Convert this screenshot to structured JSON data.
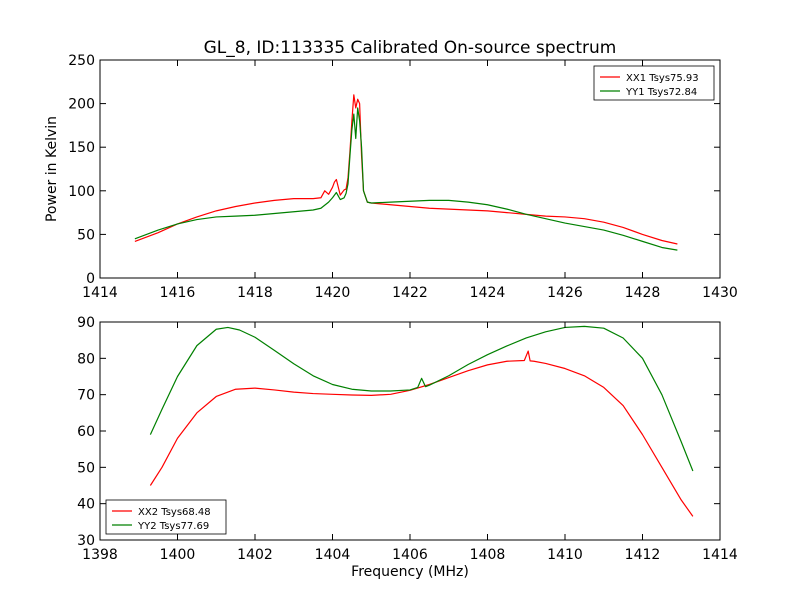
{
  "chart_data": [
    {
      "type": "line",
      "title": "GL_8, ID:113335 Calibrated On-source spectrum",
      "xlabel": "",
      "ylabel": "Power in Kelvin",
      "xlim": [
        1414,
        1430
      ],
      "ylim": [
        0,
        250
      ],
      "xticks": [
        1414,
        1416,
        1418,
        1420,
        1422,
        1424,
        1426,
        1428,
        1430
      ],
      "yticks": [
        0,
        50,
        100,
        150,
        200,
        250
      ],
      "legend_position": "upper-right",
      "series": [
        {
          "name": "XX1 Tsys75.93",
          "color": "#ff0000",
          "x": [
            1414.9,
            1415.5,
            1416.0,
            1416.5,
            1417.0,
            1417.5,
            1418.0,
            1418.5,
            1419.0,
            1419.5,
            1419.7,
            1419.8,
            1419.9,
            1420.0,
            1420.05,
            1420.1,
            1420.2,
            1420.3,
            1420.35,
            1420.4,
            1420.45,
            1420.5,
            1420.55,
            1420.6,
            1420.65,
            1420.7,
            1420.75,
            1420.8,
            1420.9,
            1421.0,
            1421.5,
            1422.0,
            1422.5,
            1423.0,
            1423.5,
            1424.0,
            1424.5,
            1425.0,
            1425.5,
            1426.0,
            1426.5,
            1427.0,
            1427.5,
            1428.0,
            1428.5,
            1428.9
          ],
          "y": [
            42,
            52,
            62,
            70,
            77,
            82,
            86,
            89,
            91,
            91,
            92,
            100,
            96,
            104,
            110,
            113,
            95,
            101,
            102,
            115,
            145,
            180,
            210,
            195,
            205,
            200,
            140,
            100,
            87,
            86,
            84,
            82,
            80,
            79,
            78,
            77,
            75,
            73,
            71,
            70,
            68,
            64,
            58,
            50,
            43,
            39
          ]
        },
        {
          "name": "YY1 Tsys72.84",
          "color": "#008000",
          "x": [
            1414.9,
            1415.5,
            1416.0,
            1416.5,
            1417.0,
            1417.5,
            1418.0,
            1418.5,
            1419.0,
            1419.5,
            1419.7,
            1419.9,
            1420.0,
            1420.1,
            1420.2,
            1420.3,
            1420.35,
            1420.4,
            1420.45,
            1420.5,
            1420.55,
            1420.6,
            1420.65,
            1420.7,
            1420.75,
            1420.8,
            1420.9,
            1421.0,
            1421.5,
            1422.0,
            1422.5,
            1423.0,
            1423.5,
            1424.0,
            1424.5,
            1425.0,
            1425.5,
            1426.0,
            1426.5,
            1427.0,
            1427.5,
            1428.0,
            1428.5,
            1428.9
          ],
          "y": [
            45,
            55,
            62,
            67,
            70,
            71,
            72,
            74,
            76,
            78,
            80,
            87,
            92,
            98,
            90,
            92,
            97,
            108,
            140,
            170,
            188,
            160,
            195,
            180,
            150,
            100,
            87,
            86,
            87,
            88,
            89,
            89,
            87,
            84,
            79,
            73,
            68,
            63,
            59,
            55,
            49,
            42,
            35,
            32
          ]
        }
      ]
    },
    {
      "type": "line",
      "title": "",
      "xlabel": "Frequency (MHz)",
      "ylabel": "",
      "xlim": [
        1398,
        1414
      ],
      "ylim": [
        30,
        90
      ],
      "xticks": [
        1398,
        1400,
        1402,
        1404,
        1406,
        1408,
        1410,
        1412,
        1414
      ],
      "yticks": [
        30,
        40,
        50,
        60,
        70,
        80,
        90
      ],
      "legend_position": "lower-left",
      "series": [
        {
          "name": "XX2 Tsys68.48",
          "color": "#ff0000",
          "x": [
            1399.3,
            1399.6,
            1400.0,
            1400.5,
            1401.0,
            1401.5,
            1402.0,
            1402.5,
            1403.0,
            1403.5,
            1404.0,
            1404.5,
            1405.0,
            1405.5,
            1406.0,
            1406.5,
            1407.0,
            1407.5,
            1408.0,
            1408.5,
            1408.95,
            1409.05,
            1409.1,
            1409.2,
            1409.5,
            1410.0,
            1410.5,
            1411.0,
            1411.5,
            1412.0,
            1412.5,
            1413.0,
            1413.3
          ],
          "y": [
            45,
            50,
            58,
            65,
            69.5,
            71.5,
            71.8,
            71.3,
            70.7,
            70.3,
            70.1,
            69.9,
            69.8,
            70.1,
            71.2,
            72.8,
            74.7,
            76.6,
            78.2,
            79.2,
            79.4,
            82,
            79.3,
            79.2,
            78.6,
            77.2,
            75.2,
            72,
            67,
            59,
            50,
            41,
            36.5
          ]
        },
        {
          "name": "YY2 Tsys77.69",
          "color": "#008000",
          "x": [
            1399.3,
            1399.6,
            1400.0,
            1400.5,
            1401.0,
            1401.3,
            1401.6,
            1402.0,
            1402.5,
            1403.0,
            1403.5,
            1404.0,
            1404.5,
            1405.0,
            1405.5,
            1406.0,
            1406.2,
            1406.3,
            1406.4,
            1406.5,
            1407.0,
            1407.5,
            1408.0,
            1408.5,
            1409.0,
            1409.5,
            1410.0,
            1410.5,
            1411.0,
            1411.5,
            1412.0,
            1412.5,
            1413.0,
            1413.3
          ],
          "y": [
            59,
            66,
            75,
            83.5,
            88,
            88.5,
            87.8,
            85.8,
            82.2,
            78.5,
            75.2,
            72.8,
            71.5,
            71,
            71,
            71.3,
            72,
            74.5,
            72.2,
            72.6,
            75.2,
            78.3,
            81,
            83.4,
            85.6,
            87.3,
            88.5,
            88.8,
            88.3,
            85.6,
            80,
            70,
            57,
            49
          ]
        }
      ]
    }
  ]
}
